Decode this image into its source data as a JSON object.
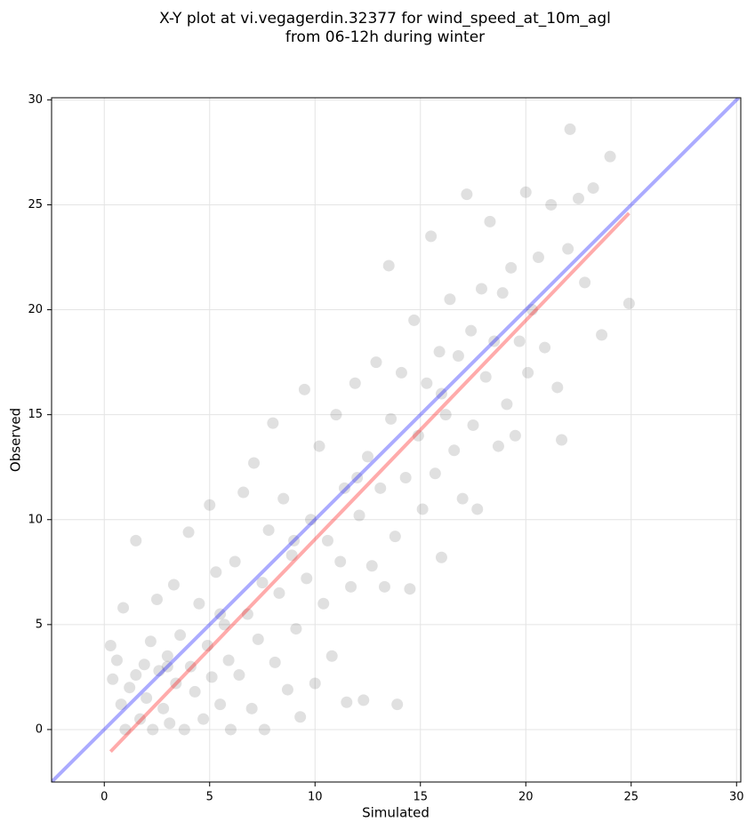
{
  "chart_data": {
    "type": "scatter",
    "title": [
      "X-Y plot at vi.vegagerdin.32377 for wind_speed_at_10m_agl",
      "from 06-12h during winter"
    ],
    "xlabel": "Simulated",
    "ylabel": "Observed",
    "xlim": [
      -2.5,
      30.2
    ],
    "ylim": [
      -2.5,
      30.1
    ],
    "xticks": [
      0,
      5,
      10,
      15,
      20,
      25,
      30
    ],
    "yticks": [
      0,
      5,
      10,
      15,
      20,
      25,
      30
    ],
    "grid": true,
    "color": "#000000",
    "x": [
      0.3,
      0.4,
      0.6,
      0.8,
      0.9,
      1.0,
      1.2,
      1.5,
      1.5,
      1.7,
      1.9,
      2.0,
      2.2,
      2.3,
      2.5,
      2.6,
      2.8,
      3.0,
      3.1,
      3.3,
      3.4,
      3.6,
      3.8,
      4.0,
      4.1,
      4.3,
      4.5,
      4.7,
      4.9,
      5.0,
      5.1,
      5.3,
      5.5,
      5.7,
      5.9,
      6.0,
      6.2,
      6.4,
      6.6,
      6.8,
      7.0,
      7.1,
      7.3,
      7.5,
      7.6,
      7.8,
      8.0,
      8.1,
      8.3,
      8.5,
      8.7,
      8.9,
      9.1,
      9.3,
      9.5,
      9.6,
      9.8,
      10.0,
      10.2,
      10.4,
      10.6,
      10.8,
      11.0,
      11.2,
      11.4,
      11.5,
      11.7,
      11.9,
      12.1,
      12.3,
      12.5,
      12.7,
      12.9,
      13.1,
      13.3,
      13.5,
      13.6,
      13.8,
      13.9,
      14.1,
      14.3,
      14.5,
      14.7,
      14.9,
      15.1,
      15.3,
      15.5,
      15.7,
      15.9,
      16.0,
      16.2,
      16.4,
      16.6,
      16.8,
      17.0,
      17.2,
      17.4,
      17.5,
      17.7,
      17.9,
      18.1,
      18.3,
      18.5,
      18.7,
      18.9,
      19.1,
      19.3,
      19.5,
      19.7,
      20.0,
      20.1,
      20.3,
      20.6,
      20.9,
      21.2,
      21.5,
      21.7,
      22.0,
      22.1,
      22.5,
      22.8,
      23.2,
      23.6,
      24.0,
      24.9,
      3.0,
      5.5,
      9.0,
      12.0,
      16.0
    ],
    "y": [
      4.0,
      2.4,
      3.3,
      1.2,
      5.8,
      0.0,
      2.0,
      9.0,
      2.6,
      0.5,
      3.1,
      1.5,
      4.2,
      0.0,
      6.2,
      2.8,
      1.0,
      3.5,
      0.3,
      6.9,
      2.2,
      4.5,
      0.0,
      9.4,
      3.0,
      1.8,
      6.0,
      0.5,
      4.0,
      10.7,
      2.5,
      7.5,
      1.2,
      5.0,
      3.3,
      0.0,
      8.0,
      2.6,
      11.3,
      5.5,
      1.0,
      12.7,
      4.3,
      7.0,
      0.0,
      9.5,
      14.6,
      3.2,
      6.5,
      11.0,
      1.9,
      8.3,
      4.8,
      0.6,
      16.2,
      7.2,
      10.0,
      2.2,
      13.5,
      6.0,
      9.0,
      3.5,
      15.0,
      8.0,
      11.5,
      1.3,
      6.8,
      16.5,
      10.2,
      1.4,
      13.0,
      7.8,
      17.5,
      11.5,
      6.8,
      22.1,
      14.8,
      9.2,
      1.2,
      17.0,
      12.0,
      6.7,
      19.5,
      14.0,
      10.5,
      16.5,
      23.5,
      12.2,
      18.0,
      8.2,
      15.0,
      20.5,
      13.3,
      17.8,
      11.0,
      25.5,
      19.0,
      14.5,
      10.5,
      21.0,
      16.8,
      24.2,
      18.5,
      13.5,
      20.8,
      15.5,
      22.0,
      14.0,
      18.5,
      25.6,
      17.0,
      20.0,
      22.5,
      18.2,
      25.0,
      16.3,
      13.8,
      22.9,
      28.6,
      25.3,
      21.3,
      25.8,
      18.8,
      27.3,
      20.3,
      3.0,
      5.5,
      9.0,
      12.0,
      16.0
    ],
    "lines": [
      {
        "color": "#0000ff",
        "x": [
          -2.5,
          30.1
        ],
        "y": [
          -2.5,
          30.1
        ]
      },
      {
        "color": "#ff0000",
        "x": [
          0.3,
          24.9
        ],
        "y": [
          -1.05,
          24.6
        ]
      }
    ]
  }
}
